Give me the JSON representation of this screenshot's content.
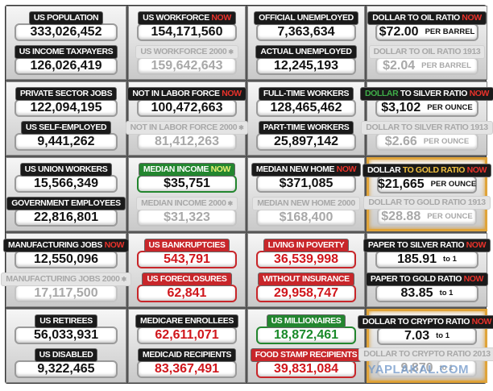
{
  "rows": [
    {
      "cells": [
        {
          "items": [
            {
              "label": "US POPULATION",
              "value": "333,026,452"
            },
            {
              "label": "US INCOME TAXPAYERS",
              "value": "126,026,419"
            }
          ]
        },
        {
          "items": [
            {
              "label": "US WORKFORCE",
              "tag": "NOW",
              "value": "154,171,560"
            },
            {
              "label": "US WORKFORCE 2000",
              "mark": "✱",
              "value": "159,642,643",
              "theme": "past"
            }
          ]
        },
        {
          "items": [
            {
              "label": "OFFICIAL UNEMPLOYED",
              "value": "7,363,634"
            },
            {
              "label": "ACTUAL UNEMPLOYED",
              "value": "12,245,193"
            }
          ]
        },
        {
          "items": [
            {
              "label": "DOLLAR TO OIL RATIO",
              "tag": "NOW",
              "value": "$72.00",
              "unit": "PER BARREL"
            },
            {
              "label": "DOLLAR TO OIL RATIO 1913",
              "value": "$2.04",
              "unit": "PER BARREL",
              "theme": "past"
            }
          ]
        }
      ]
    },
    {
      "cells": [
        {
          "items": [
            {
              "label": "PRIVATE SECTOR JOBS",
              "value": "122,094,195"
            },
            {
              "label": "US SELF-EMPLOYED",
              "value": "9,441,262"
            }
          ]
        },
        {
          "items": [
            {
              "label": "NOT IN LABOR FORCE",
              "tag": "NOW",
              "value": "100,472,663"
            },
            {
              "label": "NOT IN LABOR FORCE 2000",
              "mark": "✱",
              "value": "81,412,263",
              "theme": "past"
            }
          ]
        },
        {
          "items": [
            {
              "label": "FULL-TIME WORKERS",
              "value": "128,465,462"
            },
            {
              "label": "PART-TIME WORKERS",
              "value": "25,897,142"
            }
          ]
        },
        {
          "items": [
            {
              "prefix": "DOLLAR",
              "prefix_color": "#3fae49",
              "label": "TO SILVER RATIO",
              "tag": "NOW",
              "value": "$3,102",
              "unit": "PER OUNCE"
            },
            {
              "label": "DOLLAR TO SILVER RATIO 1913",
              "value": "$2.66",
              "unit": "PER OUNCE",
              "theme": "past"
            }
          ]
        }
      ]
    },
    {
      "cells": [
        {
          "items": [
            {
              "label": "US UNION WORKERS",
              "value": "15,566,349"
            },
            {
              "label": "GOVERNMENT EMPLOYEES",
              "value": "22,816,801"
            }
          ]
        },
        {
          "items": [
            {
              "label": "MEDIAN INCOME",
              "tag": "NOW",
              "value": "$35,751",
              "theme": "good-label"
            },
            {
              "label": "MEDIAN INCOME 2000",
              "mark": "✱",
              "value": "$31,323",
              "theme": "past"
            }
          ]
        },
        {
          "items": [
            {
              "label": "MEDIAN NEW HOME",
              "tag": "NOW",
              "value": "$371,085"
            },
            {
              "label": "MEDIAN NEW HOME 2000",
              "value": "$168,400",
              "theme": "past"
            }
          ]
        },
        {
          "frame": "gold",
          "items": [
            {
              "prefix": "DOLLAR",
              "label": "TO GOLD RATIO",
              "label_color": "#f0c040",
              "tag": "NOW",
              "value": "$21,665",
              "unit": "PER OUNCE"
            },
            {
              "label": "DOLLAR TO GOLD RATIO 1913",
              "value": "$28.88",
              "unit": "PER OUNCE",
              "theme": "past"
            }
          ]
        }
      ]
    },
    {
      "cells": [
        {
          "items": [
            {
              "label": "MANUFACTURING JOBS",
              "tag": "NOW",
              "value": "12,550,096"
            },
            {
              "label": "MANUFACTURING JOBS 2000",
              "mark": "✱",
              "value": "17,117,500",
              "theme": "past"
            }
          ]
        },
        {
          "items": [
            {
              "label": "US BANKRUPTCIES",
              "value": "543,791",
              "theme": "alert"
            },
            {
              "label": "US FORECLOSURES",
              "value": "62,841",
              "theme": "alert"
            }
          ]
        },
        {
          "items": [
            {
              "label": "LIVING IN POVERTY",
              "value": "36,539,998",
              "theme": "alert"
            },
            {
              "label": "WITHOUT INSURANCE",
              "value": "29,958,747",
              "theme": "alert"
            }
          ]
        },
        {
          "items": [
            {
              "label": "PAPER TO SILVER RATIO",
              "tag": "NOW",
              "value": "185.91",
              "unit": "to 1"
            },
            {
              "label": "PAPER TO GOLD RATIO",
              "tag": "NOW",
              "value": "83.85",
              "unit": "to 1"
            }
          ]
        }
      ]
    },
    {
      "cells": [
        {
          "items": [
            {
              "label": "US RETIREES",
              "value": "56,033,931"
            },
            {
              "label": "US DISABLED",
              "value": "9,322,465"
            }
          ]
        },
        {
          "items": [
            {
              "label": "MEDICARE ENROLLEES",
              "value": "62,611,071",
              "theme": "alert-value"
            },
            {
              "label": "MEDICAID RECIPIENTS",
              "value": "83,367,491",
              "theme": "alert-value"
            }
          ]
        },
        {
          "items": [
            {
              "label": "US MILLIONAIRES",
              "value": "18,872,461",
              "theme": "good"
            },
            {
              "label": "FOOD STAMP RECIPIENTS",
              "value": "39,831,084",
              "theme": "alert"
            }
          ]
        },
        {
          "frame": "gold",
          "items": [
            {
              "label": "DOLLAR TO CRYPTO RATIO",
              "tag": "NOW",
              "value": "7.03",
              "unit": "to 1"
            },
            {
              "label": "DOLLAR TO CRYPTO RATIO 2013",
              "value": "9.870",
              "unit": "to 1",
              "theme": "past"
            }
          ]
        }
      ]
    }
  ],
  "watermark": "YAPLAKAL.COM"
}
